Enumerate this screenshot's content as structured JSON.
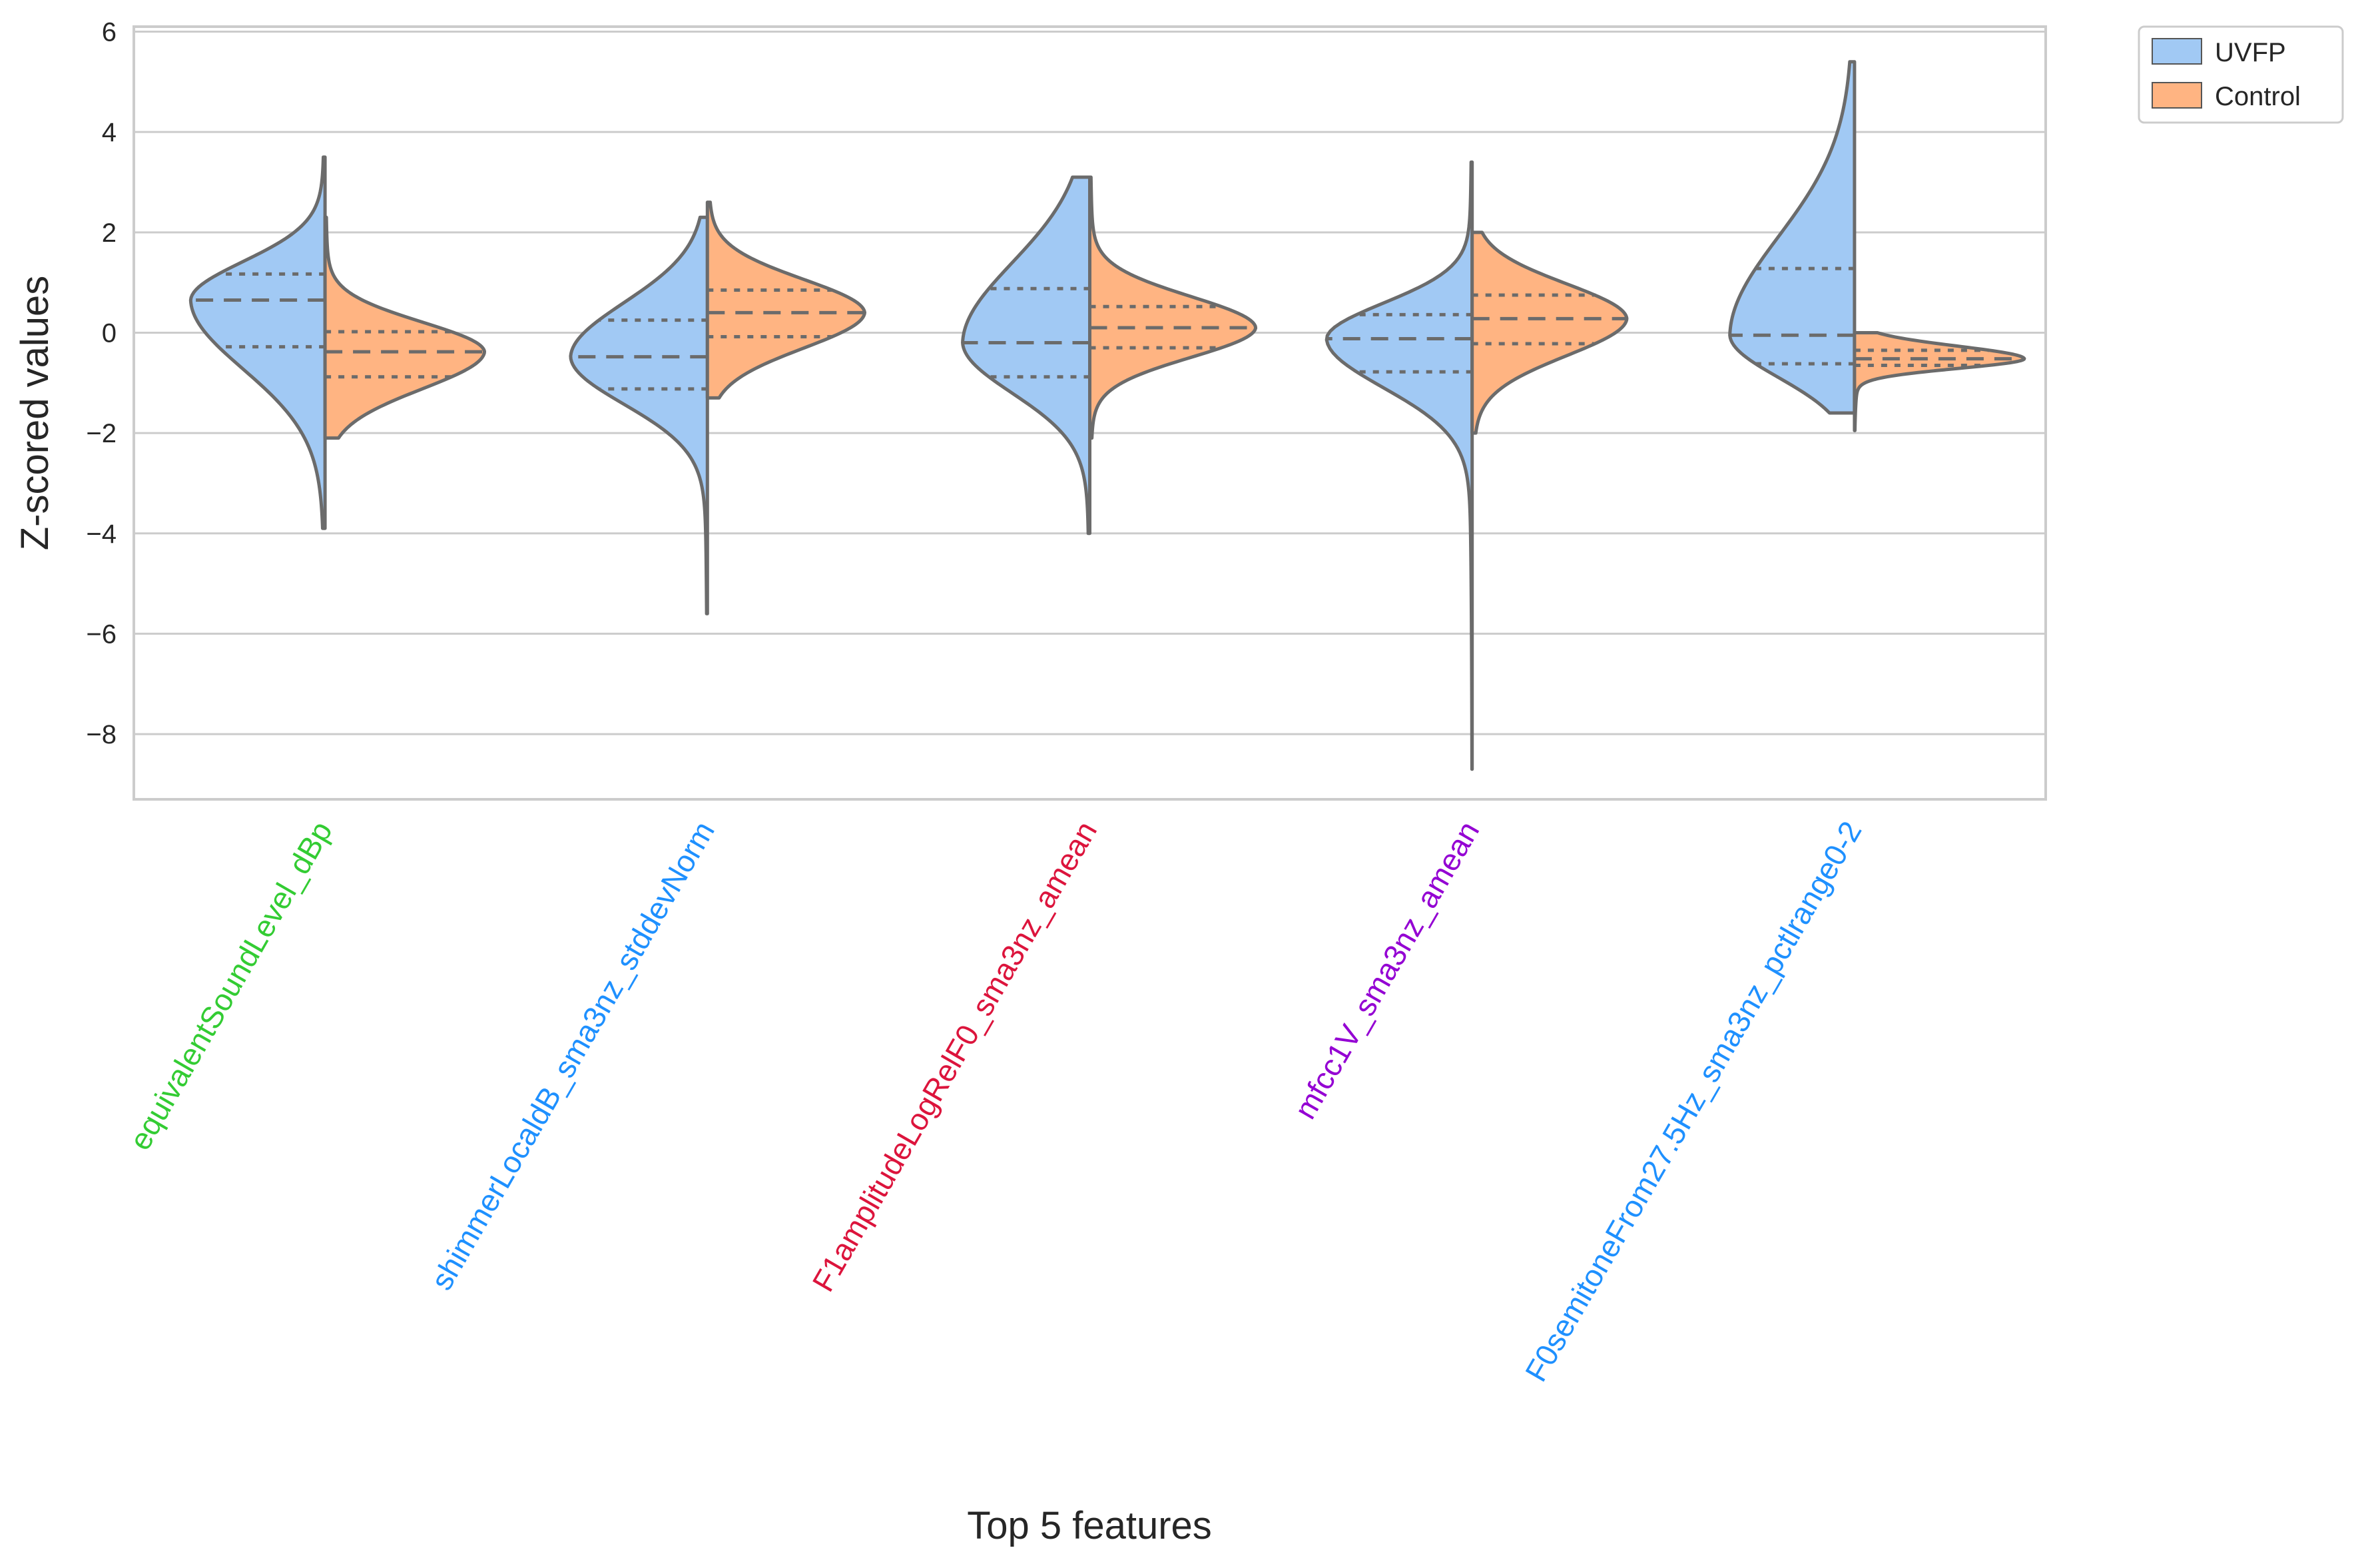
{
  "chart_data": {
    "type": "violin",
    "title": "",
    "xlabel": "Top 5 features",
    "ylabel": "Z-scored values",
    "ylim": [
      -9.3,
      6.1
    ],
    "yticks": [
      -8,
      -6,
      -4,
      -2,
      0,
      2,
      4,
      6
    ],
    "grid": true,
    "legend": {
      "placement": "outside-top-right",
      "entries": [
        "UVFP",
        "Control"
      ]
    },
    "categories": [
      "equivalentSoundLevel_dBp",
      "shimmerLocaldB_sma3nz_stddevNorm",
      "F1amplitudeLogRelF0_sma3nz_amean",
      "mfcc1V_sma3nz_amean",
      "F0semitoneFrom27.5Hz_sma3nz_pctlrange0-2"
    ],
    "category_colors": [
      "#33cc33",
      "#1e90ff",
      "#dc143c",
      "#9400d3",
      "#1e90ff"
    ],
    "series": [
      {
        "name": "UVFP",
        "color": "#a1c9f4",
        "quartiles": [
          [
            -0.28,
            0.65,
            1.17
          ],
          [
            -1.12,
            -0.48,
            0.25
          ],
          [
            -0.88,
            -0.2,
            0.88
          ],
          [
            -0.78,
            -0.12,
            0.36
          ],
          [
            -0.62,
            -0.05,
            1.28
          ]
        ],
        "range": [
          [
            -3.9,
            3.5
          ],
          [
            -5.6,
            2.3
          ],
          [
            -4.0,
            3.1
          ],
          [
            -8.7,
            3.4
          ],
          [
            -1.6,
            5.4
          ]
        ]
      },
      {
        "name": "Control",
        "color": "#ffb482",
        "quartiles": [
          [
            -0.88,
            -0.38,
            0.02
          ],
          [
            -0.08,
            0.4,
            0.85
          ],
          [
            -0.3,
            0.1,
            0.52
          ],
          [
            -0.22,
            0.28,
            0.75
          ],
          [
            -0.65,
            -0.52,
            -0.35
          ]
        ],
        "range": [
          [
            -2.1,
            2.3
          ],
          [
            -1.3,
            2.6
          ],
          [
            -2.1,
            3.1
          ],
          [
            -2.0,
            2.0
          ],
          [
            -1.95,
            0.0
          ]
        ]
      }
    ]
  }
}
